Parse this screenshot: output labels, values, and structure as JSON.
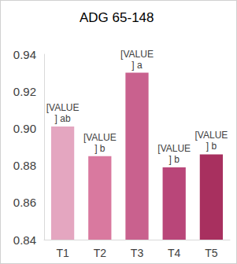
{
  "chart_data": {
    "type": "bar",
    "title": "ADG 65-148",
    "categories": [
      "T1",
      "T2",
      "T3",
      "T4",
      "T5"
    ],
    "values": [
      0.901,
      0.885,
      0.93,
      0.879,
      0.886
    ],
    "annotations": [
      "[VALUE] ab",
      "[VALUE] b",
      "[VALUE] a",
      "[VALUE] b",
      "[VALUE] b"
    ],
    "colors": [
      "#e4a6c0",
      "#d9799f",
      "#c9618e",
      "#b94679",
      "#a8305f"
    ],
    "ylim": [
      0.84,
      0.94
    ],
    "yticks": [
      0.84,
      0.86,
      0.88,
      {
        "value": 0.9,
        "label": "0.90"
      },
      0.92,
      0.94
    ],
    "grid": false
  }
}
